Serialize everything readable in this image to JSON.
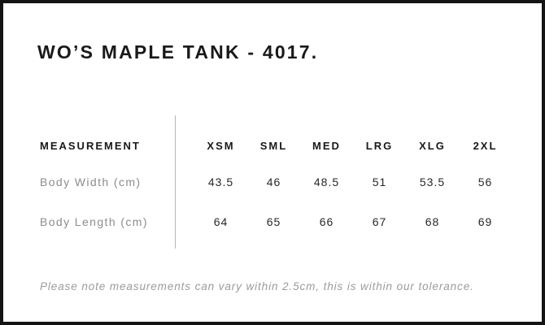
{
  "title": "WO’S MAPLE TANK - 4017.",
  "table": {
    "label_header": "MEASUREMENT",
    "size_headers": [
      "XSM",
      "SML",
      "MED",
      "LRG",
      "XLG",
      "2XL"
    ],
    "rows": [
      {
        "label": "Body Width (cm)",
        "values": [
          "43.5",
          "46",
          "48.5",
          "51",
          "53.5",
          "56"
        ]
      },
      {
        "label": "Body Length (cm)",
        "values": [
          "64",
          "65",
          "66",
          "67",
          "68",
          "69"
        ]
      }
    ]
  },
  "note": "Please note measurements can vary within 2.5cm, this is within our tolerance.",
  "colors": {
    "frame_border": "#141414",
    "heading_text": "#191919",
    "row_label_gray": "#8c8c8c",
    "value_text": "#282828",
    "divider_gray": "#b5b5b5",
    "note_gray": "#9b9b9b",
    "background": "#ffffff"
  }
}
